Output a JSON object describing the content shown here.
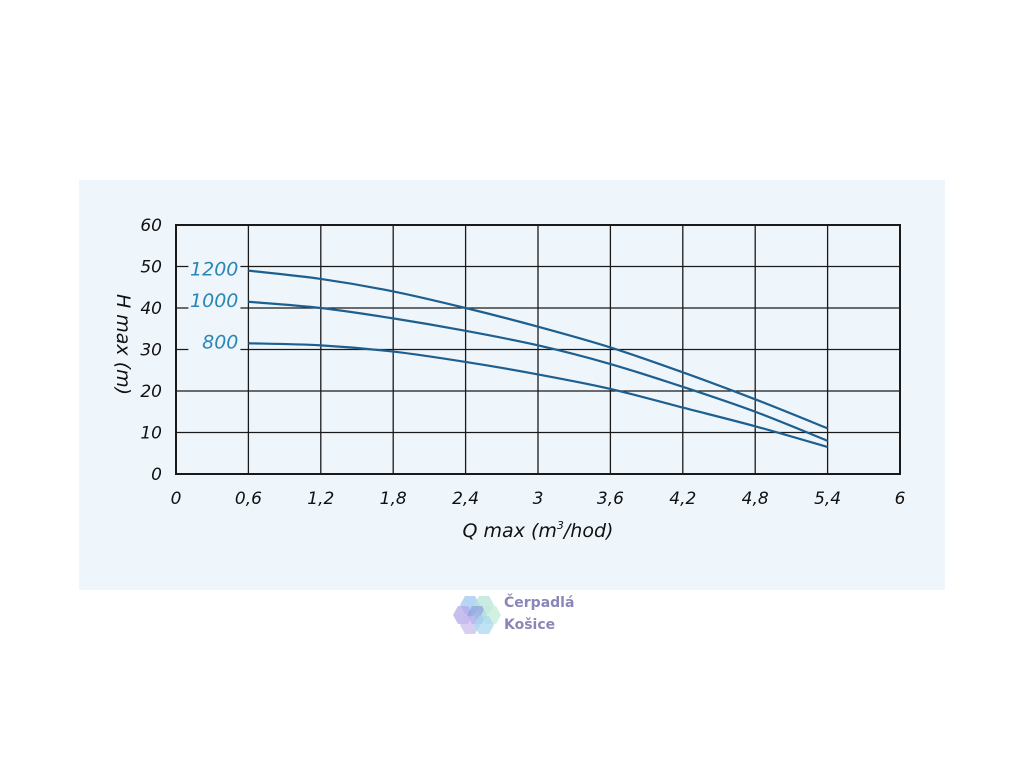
{
  "chart_data": {
    "type": "line",
    "xlabel_main": "Q max (m",
    "xlabel_sup": "3",
    "xlabel_end": "/hod)",
    "ylabel": "H max (m)",
    "xlim": [
      0,
      6
    ],
    "ylim": [
      0,
      60
    ],
    "x_ticks": [
      "0",
      "0,6",
      "1,2",
      "1,8",
      "2,4",
      "3",
      "3,6",
      "4,2",
      "4,8",
      "5,4",
      "6"
    ],
    "y_ticks": [
      "0",
      "10",
      "20",
      "30",
      "40",
      "50",
      "60"
    ],
    "grid": true,
    "series": [
      {
        "name": "1200",
        "color": "#1f5f8f",
        "x": [
          0.6,
          1.2,
          1.8,
          2.4,
          3.0,
          3.6,
          4.2,
          4.8,
          5.4
        ],
        "y": [
          49,
          47,
          44,
          40,
          35.5,
          30.5,
          24.5,
          18,
          11
        ]
      },
      {
        "name": "1000",
        "color": "#1f5f8f",
        "x": [
          0.6,
          1.2,
          1.8,
          2.4,
          3.0,
          3.6,
          4.2,
          4.8,
          5.4
        ],
        "y": [
          41.5,
          40,
          37.5,
          34.5,
          31,
          26.5,
          21,
          15,
          8
        ]
      },
      {
        "name": "800",
        "color": "#1f5f8f",
        "x": [
          0.6,
          1.2,
          1.8,
          2.4,
          3.0,
          3.6,
          4.2,
          4.8,
          5.4
        ],
        "y": [
          31.5,
          31,
          29.5,
          27,
          24,
          20.5,
          16,
          11.5,
          6.5
        ]
      }
    ],
    "label_color": "#2a86b4"
  },
  "watermark": {
    "line1": "Čerpadlá",
    "line2": "Košice"
  }
}
